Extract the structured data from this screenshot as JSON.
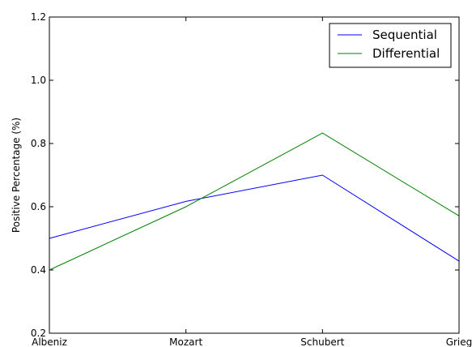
{
  "chart_data": {
    "type": "line",
    "categories": [
      "Albeniz",
      "Mozart",
      "Schubert",
      "Grieg"
    ],
    "series": [
      {
        "name": "Sequential",
        "values": [
          0.5,
          0.617,
          0.7,
          0.428
        ],
        "color": "#0000ff"
      },
      {
        "name": "Differential",
        "values": [
          0.4,
          0.6,
          0.833,
          0.571
        ],
        "color": "#008000"
      }
    ],
    "title": "",
    "xlabel": "",
    "ylabel": "Positive Percentage (%)",
    "ylim": [
      0.2,
      1.2
    ],
    "yticks": [
      "0.2",
      "0.4",
      "0.6",
      "0.8",
      "1.0",
      "1.2"
    ],
    "grid": false,
    "legend_position": "top-right"
  }
}
